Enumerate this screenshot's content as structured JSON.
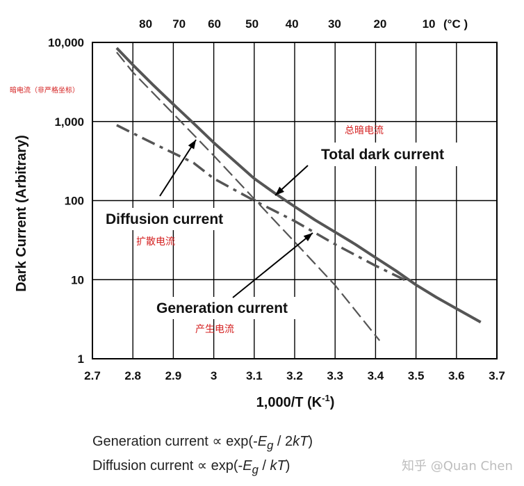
{
  "chart_data": {
    "type": "line",
    "ylabel": "Dark Current (Arbitrary)",
    "ylabel_cn": "暗电流（非严格坐标）",
    "xlabel_main": "1,000/T  (K",
    "xlabel_sup": "-1",
    "xlabel_close": ")",
    "x_ticks": [
      "2.7",
      "2.8",
      "2.9",
      "3",
      "3.1",
      "3.2",
      "3.3",
      "3.4",
      "3.5",
      "3.6",
      "3.7"
    ],
    "x_tick_values": [
      2.7,
      2.8,
      2.9,
      3.0,
      3.1,
      3.2,
      3.3,
      3.4,
      3.5,
      3.6,
      3.7
    ],
    "xlim": [
      2.7,
      3.7
    ],
    "y_ticks": [
      "1",
      "10",
      "100",
      "1,000",
      "10,000"
    ],
    "y_tick_values": [
      1,
      10,
      100,
      1000,
      10000
    ],
    "ylim": [
      1,
      10000
    ],
    "yscale": "log",
    "top_axis": {
      "labels": [
        "80",
        "70",
        "60",
        "50",
        "40",
        "30",
        "20",
        "10"
      ],
      "celsius": [
        80,
        70,
        60,
        50,
        40,
        30,
        20,
        10
      ],
      "unit": "(°C )"
    },
    "grid": true,
    "series": [
      {
        "name": "Total dark current",
        "name_cn": "总暗电流",
        "style": "solid",
        "x": [
          2.76,
          2.8,
          2.85,
          2.9,
          2.95,
          3.0,
          3.05,
          3.1,
          3.15,
          3.2,
          3.25,
          3.3,
          3.35,
          3.4,
          3.45,
          3.5,
          3.55,
          3.6,
          3.66
        ],
        "y": [
          8500,
          5200,
          2900,
          1650,
          950,
          540,
          320,
          190,
          125,
          84,
          57,
          40,
          28,
          19,
          13,
          8.6,
          6.0,
          4.3,
          2.9
        ]
      },
      {
        "name": "Diffusion current",
        "name_cn": "扩散电流",
        "style": "dashed",
        "x": [
          2.76,
          2.8,
          2.9,
          3.0,
          3.1,
          3.2,
          3.3,
          3.41
        ],
        "y": [
          7500,
          4200,
          1250,
          370,
          105,
          30,
          8.5,
          1.7
        ]
      },
      {
        "name": "Generation current",
        "name_cn": "产生电流",
        "style": "dash-dot",
        "x": [
          2.76,
          2.85,
          2.95,
          3.0,
          3.1,
          3.2,
          3.3,
          3.4,
          3.48
        ],
        "y": [
          900,
          530,
          300,
          190,
          100,
          55,
          28,
          15,
          9.5
        ]
      }
    ],
    "formulas": [
      {
        "prefix": "Generation current ∝ exp(-",
        "E": "E",
        "g": "g",
        "suffix": " / 2",
        "k": "k",
        "T": "T",
        "close": ")"
      },
      {
        "prefix": "Diffusion current ∝ exp(-",
        "E": "E",
        "g": "g",
        "suffix": " / ",
        "k": "k",
        "T": "T",
        "close": ")"
      }
    ],
    "watermark": "知乎 @Quan Chen",
    "colors": {
      "line": "#555555",
      "grid": "#000000",
      "annotation_cn": "#d42020",
      "axis_text": "#111111"
    }
  }
}
